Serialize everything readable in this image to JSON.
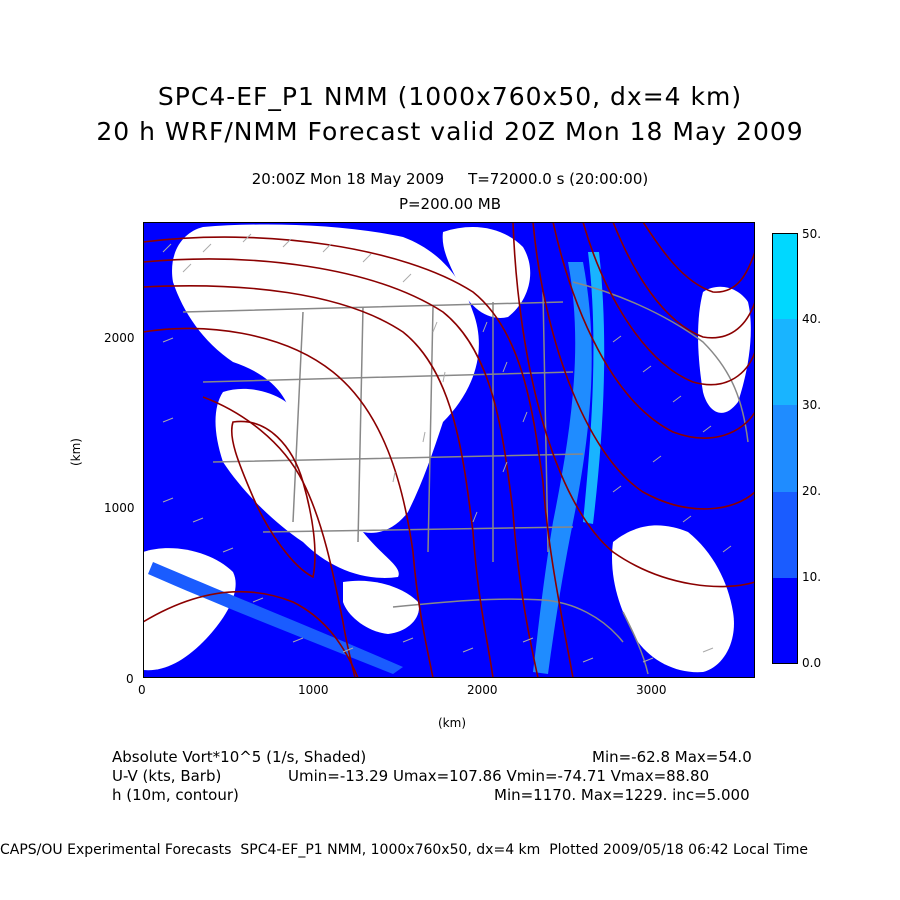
{
  "header": {
    "title_line1": "SPC4-EF_P1 NMM (1000x760x50, dx=4 km)",
    "title_line2": "20 h WRF/NMM Forecast valid 20Z Mon 18 May 2009",
    "time_line": "20:00Z Mon 18 May 2009     T=72000.0 s (20:00:00)",
    "level_line": "P=200.00 MB"
  },
  "map": {
    "x_axis_label": "(km)",
    "y_axis_label": "(km)",
    "x_ticks": [
      "0",
      "1000",
      "2000",
      "3000"
    ],
    "y_ticks": [
      "0",
      "1000",
      "2000"
    ],
    "x_range_km": [
      0,
      3600
    ],
    "y_range_km": [
      0,
      2680
    ],
    "fill_color": "#0000ff",
    "background_color": "#ffffff",
    "contour_color": "#8b0000",
    "border_color": "#888888"
  },
  "colorbar": {
    "levels": [
      "0.0",
      "10.",
      "20.",
      "30.",
      "40.",
      "50."
    ],
    "colors": [
      "#0000ff",
      "#1a5cff",
      "#1f8cff",
      "#19b4ff",
      "#00d8ff"
    ]
  },
  "legend": {
    "row1_left": "Absolute Vort*10^5 (1/s, Shaded)",
    "row1_right": "Min=-62.8 Max=54.0",
    "row2_left": "U-V (kts, Barb)",
    "row2_right": "Umin=-13.29 Umax=107.86 Vmin=-74.71 Vmax=88.80",
    "row3_left": "h (10m, contour)",
    "row3_right": "Min=1170. Max=1229. inc=5.000"
  },
  "footer": {
    "text": "CAPS/OU Experimental Forecasts  SPC4-EF_P1 NMM, 1000x760x50, dx=4 km  Plotted 2009/05/18 06:42 Local Time"
  }
}
